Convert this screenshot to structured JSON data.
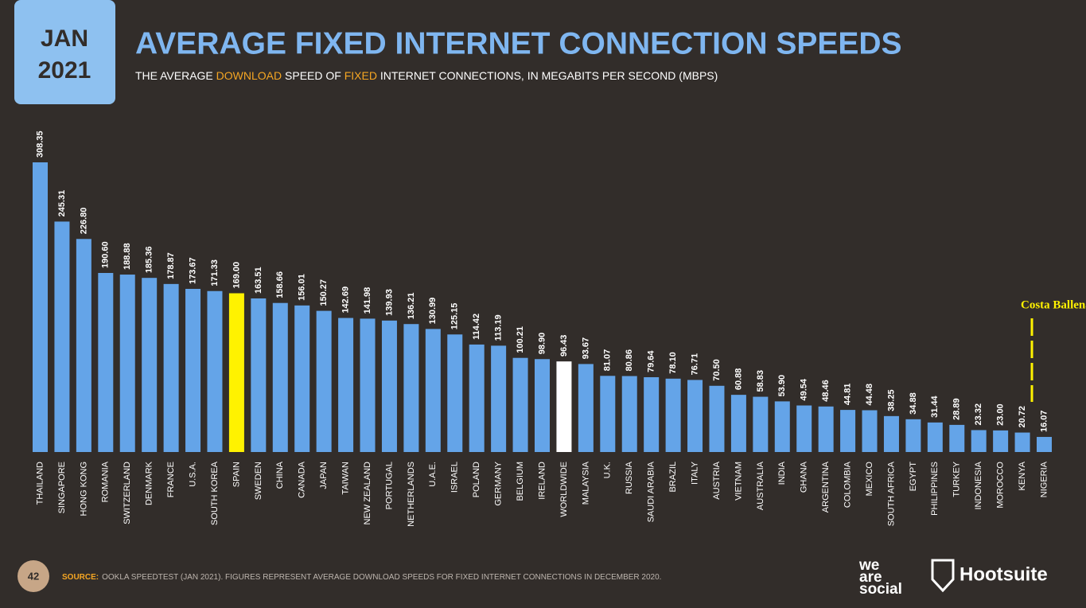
{
  "header": {
    "date_line1": "JAN",
    "date_line2": "2021",
    "page_number": "42",
    "logo_left": [
      "we",
      "are",
      "social"
    ],
    "logo_right": "Hootsuite"
  },
  "chart_data": {
    "type": "bar",
    "title": "AVERAGE FIXED INTERNET CONNECTION SPEEDS",
    "subtitle_parts": [
      {
        "text": "THE AVERAGE ",
        "color": "#ffffff"
      },
      {
        "text": "DOWNLOAD",
        "color": "#f5a623"
      },
      {
        "text": " SPEED OF ",
        "color": "#ffffff"
      },
      {
        "text": "FIXED",
        "color": "#f5a623"
      },
      {
        "text": " INTERNET CONNECTIONS, IN MEGABITS PER SECOND (MBPS)",
        "color": "#ffffff"
      }
    ],
    "categories": [
      "THAILAND",
      "SINGAPORE",
      "HONG KONG",
      "ROMANIA",
      "SWITZERLAND",
      "DENMARK",
      "FRANCE",
      "U.S.A.",
      "SOUTH KOREA",
      "SPAIN",
      "SWEDEN",
      "CHINA",
      "CANADA",
      "JAPAN",
      "TAIWAN",
      "NEW ZEALAND",
      "PORTUGAL",
      "NETHERLANDS",
      "U.A.E.",
      "ISRAEL",
      "POLAND",
      "GERMANY",
      "BELGIUM",
      "IRELAND",
      "WORLDWIDE",
      "MALAYSIA",
      "U.K.",
      "RUSSIA",
      "SAUDI ARABIA",
      "BRAZIL",
      "ITALY",
      "AUSTRIA",
      "VIETNAM",
      "AUSTRALIA",
      "INDIA",
      "GHANA",
      "ARGENTINA",
      "COLOMBIA",
      "MEXICO",
      "SOUTH AFRICA",
      "EGYPT",
      "PHILIPPINES",
      "TURKEY",
      "INDONESIA",
      "MOROCCO",
      "KENYA",
      "NIGERIA"
    ],
    "values": [
      308.35,
      245.31,
      226.8,
      190.6,
      188.88,
      185.36,
      178.87,
      173.67,
      171.33,
      169.0,
      163.51,
      158.66,
      156.01,
      150.27,
      142.69,
      141.98,
      139.93,
      136.21,
      130.99,
      125.15,
      114.42,
      113.19,
      100.21,
      98.9,
      96.43,
      93.67,
      81.07,
      80.86,
      79.64,
      78.1,
      76.71,
      70.5,
      60.88,
      58.83,
      53.9,
      49.54,
      48.46,
      44.81,
      44.48,
      38.25,
      34.88,
      31.44,
      28.89,
      23.32,
      23.0,
      20.72,
      16.07
    ],
    "value_labels": [
      "308.35",
      "245.31",
      "226.80",
      "190.60",
      "188.88",
      "185.36",
      "178.87",
      "173.67",
      "171.33",
      "169.00",
      "163.51",
      "158.66",
      "156.01",
      "150.27",
      "142.69",
      "141.98",
      "139.93",
      "136.21",
      "130.99",
      "125.15",
      "114.42",
      "113.19",
      "100.21",
      "98.90",
      "96.43",
      "93.67",
      "81.07",
      "80.86",
      "79.64",
      "78.10",
      "76.71",
      "70.50",
      "60.88",
      "58.83",
      "53.90",
      "49.54",
      "48.46",
      "44.81",
      "44.48",
      "38.25",
      "34.88",
      "31.44",
      "28.89",
      "23.32",
      "23.00",
      "20.72",
      "16.07"
    ],
    "color": "#64a4e8",
    "highlight_colors": {
      "9": "#fff200",
      "24": "#ffffff"
    },
    "annotation": "Costa Ballena",
    "source_label": "SOURCE:",
    "source_text": "OOKLA SPEEDTEST (JAN 2021). FIGURES REPRESENT AVERAGE DOWNLOAD SPEEDS FOR FIXED INTERNET CONNECTIONS IN DECEMBER 2020."
  }
}
